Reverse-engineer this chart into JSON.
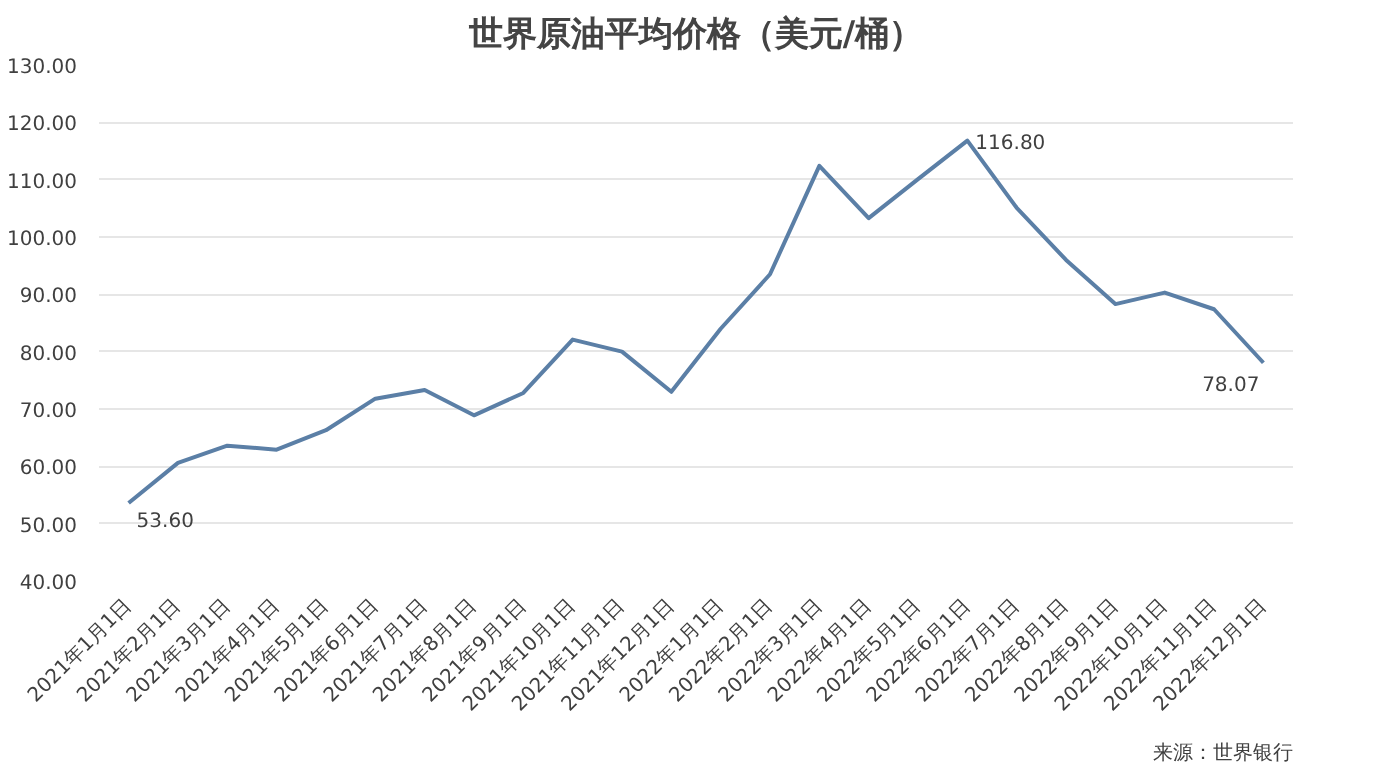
{
  "chart_data": {
    "type": "line",
    "title": "世界原油平均价格（美元/桶）",
    "categories": [
      "2021年1月1日",
      "2021年2月1日",
      "2021年3月1日",
      "2021年4月1日",
      "2021年5月1日",
      "2021年6月1日",
      "2021年7月1日",
      "2021年8月1日",
      "2021年9月1日",
      "2021年10月1日",
      "2021年11月1日",
      "2021年12月1日",
      "2022年1月1日",
      "2022年2月1日",
      "2022年3月1日",
      "2022年4月1日",
      "2022年5月1日",
      "2022年6月1日",
      "2022年7月1日",
      "2022年8月1日",
      "2022年9月1日",
      "2022年10月1日",
      "2022年11月1日",
      "2022年12月1日"
    ],
    "series": [
      {
        "color": "#5b7fa6",
        "values": [
          53.6,
          60.6,
          63.6,
          62.9,
          66.3,
          71.8,
          73.3,
          68.9,
          72.8,
          82.1,
          80.0,
          73.0,
          84.0,
          93.5,
          112.4,
          103.3,
          110.1,
          116.8,
          105.1,
          96.0,
          88.3,
          90.3,
          87.4,
          78.07
        ],
        "value_labels": [
          "53.60",
          null,
          null,
          null,
          null,
          null,
          null,
          null,
          null,
          null,
          null,
          null,
          null,
          null,
          null,
          null,
          null,
          "116.80",
          null,
          null,
          null,
          null,
          null,
          "78.07"
        ]
      }
    ],
    "ylim": [
      40,
      130
    ],
    "yticks": [
      {
        "value": 40,
        "label": "40.00"
      },
      {
        "value": 50,
        "label": "50.00"
      },
      {
        "value": 60,
        "label": "60.00"
      },
      {
        "value": 70,
        "label": "70.00"
      },
      {
        "value": 80,
        "label": "80.00"
      },
      {
        "value": 90,
        "label": "90.00"
      },
      {
        "value": 100,
        "label": "100.00"
      },
      {
        "value": 110,
        "label": "110.00"
      },
      {
        "value": 120,
        "label": "120.00"
      },
      {
        "value": 130,
        "label": "130.00"
      }
    ],
    "grid": "y",
    "marker": "none",
    "line_style": "solid",
    "annotations": [
      "来源：世界银行"
    ]
  }
}
